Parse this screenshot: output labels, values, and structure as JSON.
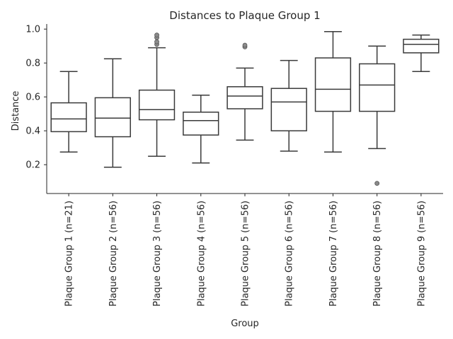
{
  "chart_data": {
    "type": "box",
    "title": "Distances to Plaque Group 1",
    "xlabel": "Group",
    "ylabel": "Distance",
    "ylim": [
      0.03,
      1.03
    ],
    "yticks": [
      0.2,
      0.4,
      0.6,
      0.8,
      1.0
    ],
    "ytick_labels": [
      "0.2",
      "0.4",
      "0.6",
      "0.8",
      "1.0"
    ],
    "grid": false,
    "box_color": "#ffffff",
    "line_color": "#3a3a3a",
    "outlier_color": "#8a8a8a",
    "categories": [
      "Plaque Group 1 (n=21)",
      "Plaque Group 2 (n=56)",
      "Plaque Group 3 (n=56)",
      "Plaque Group 4 (n=56)",
      "Plaque Group 5 (n=56)",
      "Plaque Group 6 (n=56)",
      "Plaque Group 7 (n=56)",
      "Plaque Group 8 (n=56)",
      "Plaque Group 9 (n=56)"
    ],
    "boxes": [
      {
        "whisker_low": 0.275,
        "q1": 0.395,
        "median": 0.47,
        "q3": 0.565,
        "whisker_high": 0.75,
        "outliers": []
      },
      {
        "whisker_low": 0.185,
        "q1": 0.365,
        "median": 0.475,
        "q3": 0.595,
        "whisker_high": 0.825,
        "outliers": []
      },
      {
        "whisker_low": 0.25,
        "q1": 0.465,
        "median": 0.525,
        "q3": 0.64,
        "whisker_high": 0.89,
        "outliers": [
          0.91,
          0.925,
          0.95,
          0.965
        ]
      },
      {
        "whisker_low": 0.21,
        "q1": 0.375,
        "median": 0.46,
        "q3": 0.51,
        "whisker_high": 0.61,
        "outliers": []
      },
      {
        "whisker_low": 0.345,
        "q1": 0.53,
        "median": 0.605,
        "q3": 0.66,
        "whisker_high": 0.77,
        "outliers": [
          0.895,
          0.905
        ]
      },
      {
        "whisker_low": 0.28,
        "q1": 0.4,
        "median": 0.57,
        "q3": 0.65,
        "whisker_high": 0.815,
        "outliers": []
      },
      {
        "whisker_low": 0.275,
        "q1": 0.515,
        "median": 0.645,
        "q3": 0.83,
        "whisker_high": 0.985,
        "outliers": []
      },
      {
        "whisker_low": 0.295,
        "q1": 0.515,
        "median": 0.67,
        "q3": 0.795,
        "whisker_high": 0.9,
        "outliers": [
          0.09
        ]
      },
      {
        "whisker_low": 0.75,
        "q1": 0.86,
        "median": 0.91,
        "q3": 0.94,
        "whisker_high": 0.965,
        "outliers": []
      }
    ]
  }
}
